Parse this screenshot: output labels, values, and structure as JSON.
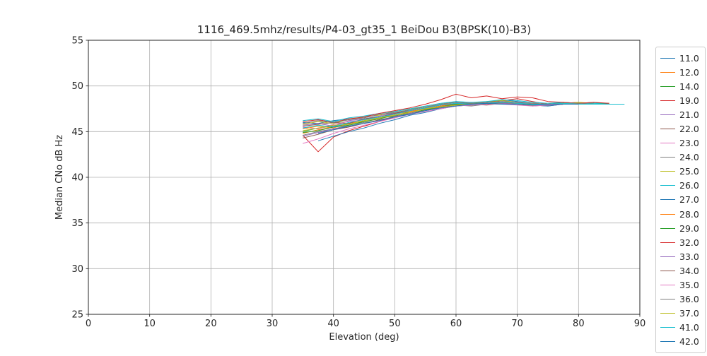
{
  "chart_data": {
    "type": "line",
    "title": "1116_469.5mhz/results/P4-03_gt35_1 BeiDou B3(BPSK(10)-B3)",
    "xlabel": "Elevation (deg)",
    "ylabel": "Median CNo dB Hz",
    "xlim": [
      0,
      90
    ],
    "ylim": [
      25,
      55
    ],
    "xticks": [
      0,
      10,
      20,
      30,
      40,
      50,
      60,
      70,
      80,
      90
    ],
    "yticks": [
      25,
      30,
      35,
      40,
      45,
      50,
      55
    ],
    "grid": true,
    "grid_color": "#b0b0b0",
    "spine_color": "#262626",
    "legend_position": "right-outside",
    "x_step": 2.5,
    "series": [
      {
        "name": "11.0",
        "color": "#1f77b4",
        "x_start": 35,
        "y": [
          46.0,
          45.9,
          46.2,
          46.4,
          46.5,
          46.9,
          47.0,
          47.4,
          47.7,
          48.0,
          48.3,
          48.1,
          48.2,
          48.5,
          48.3,
          48.1,
          48.0,
          48.2,
          48.1,
          48.2,
          48.0
        ]
      },
      {
        "name": "12.0",
        "color": "#ff7f0e",
        "x_start": 35,
        "y": [
          44.8,
          45.2,
          45.5,
          45.9,
          46.1,
          46.4,
          46.8,
          47.1,
          47.5,
          47.7,
          48.0,
          47.9,
          48.0,
          48.1,
          48.0,
          47.9,
          47.9,
          48.0,
          48.1,
          48.0
        ]
      },
      {
        "name": "14.0",
        "color": "#2ca02c",
        "x_start": 35,
        "y": [
          45.0,
          45.4,
          45.6,
          45.8,
          46.2,
          46.5,
          46.7,
          47.2,
          47.5,
          47.8,
          48.0,
          48.1,
          48.0,
          48.2,
          48.1,
          48.0,
          47.9,
          48.1,
          48.0,
          48.1,
          48.1
        ]
      },
      {
        "name": "19.0",
        "color": "#d62728",
        "x_start": 35,
        "y": [
          44.6,
          42.8,
          44.4,
          45.1,
          45.6,
          46.1,
          46.6,
          47.0,
          47.4,
          47.8,
          48.1,
          48.0,
          48.2,
          48.4,
          48.6,
          48.3,
          48.0,
          48.1,
          48.2,
          48.0
        ]
      },
      {
        "name": "21.0",
        "color": "#9467bd",
        "x_start": 35,
        "y": [
          45.7,
          45.9,
          45.6,
          46.2,
          46.4,
          46.7,
          47.1,
          47.3,
          47.6,
          48.0,
          48.2,
          48.0,
          48.1,
          48.3,
          48.2,
          48.0,
          47.9,
          48.0,
          48.1,
          48.1
        ]
      },
      {
        "name": "22.0",
        "color": "#8c564b",
        "x_start": 35,
        "y": [
          44.3,
          44.7,
          45.2,
          45.5,
          45.9,
          46.3,
          46.6,
          47.0,
          47.4,
          47.6,
          47.9,
          48.0,
          47.9,
          48.1,
          48.0,
          47.8,
          47.9,
          48.0,
          48.0
        ]
      },
      {
        "name": "23.0",
        "color": "#e377c2",
        "x_start": 35,
        "y": [
          45.5,
          45.3,
          45.8,
          46.1,
          46.3,
          46.6,
          47.0,
          47.2,
          47.6,
          47.9,
          48.1,
          48.2,
          48.0,
          48.2,
          48.1,
          48.0,
          48.0,
          48.1,
          48.0,
          48.0
        ]
      },
      {
        "name": "24.0",
        "color": "#7f7f7f",
        "x_start": 35,
        "y": [
          44.6,
          45.0,
          45.3,
          45.7,
          46.0,
          46.2,
          46.7,
          46.9,
          47.3,
          47.7,
          47.9,
          47.8,
          48.0,
          48.1,
          48.0,
          47.9,
          47.8,
          48.0,
          48.1
        ]
      },
      {
        "name": "25.0",
        "color": "#bcbd22",
        "x_start": 35,
        "y": [
          45.8,
          46.1,
          45.9,
          46.3,
          46.6,
          46.8,
          47.2,
          47.5,
          47.7,
          48.0,
          48.2,
          48.1,
          48.3,
          48.4,
          48.2,
          48.1,
          48.0,
          48.1,
          48.2,
          48.1
        ]
      },
      {
        "name": "26.0",
        "color": "#17becf",
        "x_start": 35,
        "y": [
          46.2,
          46.4,
          46.1,
          46.5,
          46.7,
          47.0,
          47.2,
          47.5,
          47.8,
          48.1,
          48.3,
          48.2,
          48.3,
          48.5,
          48.4,
          48.2,
          48.1,
          48.2,
          48.1,
          48.1,
          48.0
        ]
      },
      {
        "name": "27.0",
        "color": "#1f77b4",
        "x_start": 37.5,
        "y": [
          44.0,
          44.5,
          45.0,
          45.4,
          45.9,
          46.3,
          46.8,
          47.1,
          47.5,
          47.8,
          47.9,
          48.0,
          48.2,
          48.0,
          47.9,
          47.8,
          48.0,
          48.0
        ]
      },
      {
        "name": "28.0",
        "color": "#ff7f0e",
        "x_start": 35,
        "y": [
          45.3,
          45.6,
          45.4,
          45.9,
          46.2,
          46.5,
          46.9,
          47.2,
          47.5,
          47.8,
          48.0,
          47.9,
          48.1,
          48.2,
          48.0,
          47.9,
          48.0,
          48.1,
          48.0
        ]
      },
      {
        "name": "29.0",
        "color": "#2ca02c",
        "x_start": 35,
        "y": [
          44.9,
          45.1,
          45.5,
          45.7,
          46.1,
          46.4,
          46.8,
          47.0,
          47.4,
          47.7,
          48.0,
          48.1,
          48.0,
          48.1,
          48.0,
          48.0,
          47.9,
          48.0,
          48.1,
          48.0
        ]
      },
      {
        "name": "32.0",
        "color": "#d62728",
        "x_start": 35,
        "y": [
          46.1,
          46.3,
          46.0,
          46.4,
          46.6,
          47.0,
          47.3,
          47.6,
          48.0,
          48.5,
          49.1,
          48.7,
          48.9,
          48.6,
          48.8,
          48.7,
          48.3,
          48.2,
          48.1,
          48.2,
          48.1
        ]
      },
      {
        "name": "33.0",
        "color": "#9467bd",
        "x_start": 35,
        "y": [
          44.5,
          44.9,
          45.3,
          45.6,
          45.9,
          46.2,
          46.6,
          47.0,
          47.3,
          47.6,
          47.8,
          47.9,
          48.0,
          48.1,
          48.0,
          47.9,
          47.9,
          48.0,
          48.0
        ]
      },
      {
        "name": "34.0",
        "color": "#8c564b",
        "x_start": 35,
        "y": [
          45.6,
          45.8,
          46.0,
          45.9,
          46.4,
          46.6,
          47.0,
          47.3,
          47.6,
          47.9,
          48.1,
          48.0,
          48.1,
          48.2,
          48.1,
          48.0,
          48.0,
          48.1,
          48.0,
          48.0
        ]
      },
      {
        "name": "35.0",
        "color": "#e377c2",
        "x_start": 35,
        "y": [
          43.7,
          44.2,
          44.8,
          45.3,
          45.7,
          46.1,
          46.5,
          46.9,
          47.2,
          47.5,
          47.8,
          47.9,
          48.0,
          48.0,
          47.9,
          47.8,
          47.9,
          48.0
        ]
      },
      {
        "name": "36.0",
        "color": "#7f7f7f",
        "x_start": 35,
        "y": [
          45.9,
          46.2,
          46.0,
          46.3,
          46.5,
          46.9,
          47.1,
          47.4,
          47.7,
          48.0,
          48.2,
          48.1,
          48.2,
          48.3,
          48.2,
          48.1,
          48.0,
          48.1,
          48.1,
          48.0
        ]
      },
      {
        "name": "37.0",
        "color": "#bcbd22",
        "x_start": 35,
        "y": [
          45.1,
          45.4,
          45.7,
          45.8,
          46.2,
          46.5,
          46.8,
          47.1,
          47.5,
          47.7,
          47.9,
          48.0,
          48.1,
          48.0,
          48.0,
          47.9,
          48.0,
          48.1,
          48.0
        ]
      },
      {
        "name": "41.0",
        "color": "#17becf",
        "x_start": 35,
        "y": [
          45.4,
          45.7,
          45.5,
          46.0,
          46.3,
          46.6,
          46.9,
          47.3,
          47.6,
          47.9,
          48.1,
          48.0,
          48.1,
          48.2,
          48.1,
          48.0,
          48.0,
          48.1,
          48.0,
          48.0,
          48.0,
          48.0
        ]
      },
      {
        "name": "42.0",
        "color": "#1f77b4",
        "x_start": 37.5,
        "y": [
          44.8,
          45.2,
          45.6,
          45.9,
          46.2,
          46.6,
          46.9,
          47.3,
          47.6,
          47.8,
          48.0,
          48.1,
          48.0,
          48.0,
          47.9,
          48.0,
          48.0,
          48.0
        ]
      }
    ]
  }
}
